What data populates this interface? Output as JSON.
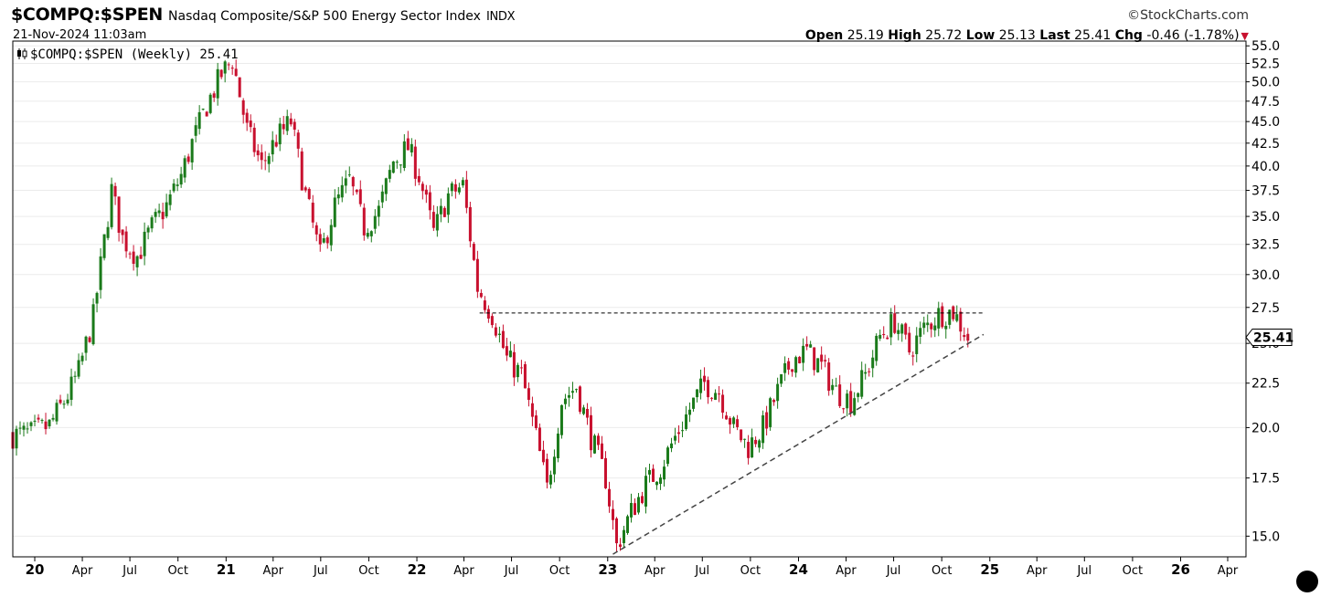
{
  "header": {
    "symbol": "$COMPQ:$SPEN",
    "description": "Nasdaq Composite/S&P 500 Energy Sector Index",
    "exchange": "INDX",
    "datetime": "21-Nov-2024 11:03am",
    "brand": "StockCharts.com",
    "quote": {
      "open_label": "Open",
      "open": "25.19",
      "high_label": "High",
      "high": "25.72",
      "low_label": "Low",
      "low": "25.13",
      "last_label": "Last",
      "last": "25.41",
      "chg_label": "Chg",
      "chg": "-0.46 (-1.78%)"
    }
  },
  "legend": {
    "text": "$COMPQ:$SPEN (Weekly) 25.41",
    "icon": "candlestick-icon"
  },
  "colors": {
    "up": "#1a7a1a",
    "down": "#c8102e",
    "trendline": "#444444",
    "grid": "#ebebeb",
    "axis": "#000000"
  },
  "chart_data": {
    "type": "candlestick",
    "title": "$COMPQ:$SPEN (Weekly) 25.41",
    "interval": "Weekly",
    "y_scale": "log",
    "ylim": [
      14.2,
      55.7
    ],
    "xlim": [
      "2019-11-20",
      "2026-05-06"
    ],
    "grid": "horizontal",
    "y_ticks": [
      "15.0",
      "17.5",
      "20.0",
      "22.5",
      "25.0",
      "27.5",
      "30.0",
      "32.5",
      "35.0",
      "37.5",
      "40.0",
      "42.5",
      "45.0",
      "47.5",
      "50.0",
      "52.5",
      "55.0"
    ],
    "y_tick_values": [
      15.0,
      17.5,
      20.0,
      22.5,
      25.0,
      27.5,
      30.0,
      32.5,
      35.0,
      37.5,
      40.0,
      42.5,
      45.0,
      47.5,
      50.0,
      52.5,
      55.0
    ],
    "x_ticks": [
      {
        "label": "20",
        "date": "2020-01-01",
        "major": true
      },
      {
        "label": "Apr",
        "date": "2020-04-01",
        "major": false
      },
      {
        "label": "Jul",
        "date": "2020-07-01",
        "major": false
      },
      {
        "label": "Oct",
        "date": "2020-10-01",
        "major": false
      },
      {
        "label": "21",
        "date": "2021-01-01",
        "major": true
      },
      {
        "label": "Apr",
        "date": "2021-04-01",
        "major": false
      },
      {
        "label": "Jul",
        "date": "2021-07-01",
        "major": false
      },
      {
        "label": "Oct",
        "date": "2021-10-01",
        "major": false
      },
      {
        "label": "22",
        "date": "2022-01-01",
        "major": true
      },
      {
        "label": "Apr",
        "date": "2022-04-01",
        "major": false
      },
      {
        "label": "Jul",
        "date": "2022-07-01",
        "major": false
      },
      {
        "label": "Oct",
        "date": "2022-10-01",
        "major": false
      },
      {
        "label": "23",
        "date": "2023-01-01",
        "major": true
      },
      {
        "label": "Apr",
        "date": "2023-04-01",
        "major": false
      },
      {
        "label": "Jul",
        "date": "2023-07-01",
        "major": false
      },
      {
        "label": "Oct",
        "date": "2023-10-01",
        "major": false
      },
      {
        "label": "24",
        "date": "2024-01-01",
        "major": true
      },
      {
        "label": "Apr",
        "date": "2024-04-01",
        "major": false
      },
      {
        "label": "Jul",
        "date": "2024-07-01",
        "major": false
      },
      {
        "label": "Oct",
        "date": "2024-10-01",
        "major": false
      },
      {
        "label": "25",
        "date": "2025-01-01",
        "major": true
      },
      {
        "label": "Apr",
        "date": "2025-04-01",
        "major": false
      },
      {
        "label": "Jul",
        "date": "2025-07-01",
        "major": false
      },
      {
        "label": "Oct",
        "date": "2025-10-01",
        "major": false
      },
      {
        "label": "26",
        "date": "2026-01-01",
        "major": true
      },
      {
        "label": "Apr",
        "date": "2026-04-01",
        "major": false
      }
    ],
    "last_value_label": "25.41",
    "last_value": 25.41,
    "close_path": [
      [
        "2019-11-20",
        19.6
      ],
      [
        "2019-12-25",
        19.7
      ],
      [
        "2020-01-29",
        20.1
      ],
      [
        "2020-03-04",
        21.8
      ],
      [
        "2020-03-25",
        23.2
      ],
      [
        "2020-04-22",
        26.8
      ],
      [
        "2020-05-27",
        37.5
      ],
      [
        "2020-06-17",
        33.0
      ],
      [
        "2020-07-15",
        31.5
      ],
      [
        "2020-08-12",
        34.0
      ],
      [
        "2020-09-09",
        36.0
      ],
      [
        "2020-10-07",
        39.0
      ],
      [
        "2020-10-28",
        42.5
      ],
      [
        "2020-11-25",
        47.0
      ],
      [
        "2020-12-23",
        51.0
      ],
      [
        "2021-01-13",
        53.0
      ],
      [
        "2021-02-10",
        44.0
      ],
      [
        "2021-03-10",
        40.0
      ],
      [
        "2021-04-07",
        43.0
      ],
      [
        "2021-05-05",
        45.0
      ],
      [
        "2021-06-02",
        37.0
      ],
      [
        "2021-06-30",
        31.5
      ],
      [
        "2021-07-28",
        36.0
      ],
      [
        "2021-08-25",
        38.5
      ],
      [
        "2021-09-22",
        34.0
      ],
      [
        "2021-10-20",
        35.5
      ],
      [
        "2021-11-17",
        40.5
      ],
      [
        "2021-12-15",
        42.0
      ],
      [
        "2022-01-05",
        39.0
      ],
      [
        "2022-02-02",
        33.5
      ],
      [
        "2022-03-02",
        37.0
      ],
      [
        "2022-03-30",
        38.0
      ],
      [
        "2022-04-27",
        29.0
      ],
      [
        "2022-05-25",
        27.0
      ],
      [
        "2022-06-22",
        24.0
      ],
      [
        "2022-07-20",
        23.0
      ],
      [
        "2022-08-17",
        19.5
      ],
      [
        "2022-09-07",
        17.0
      ],
      [
        "2022-10-05",
        21.5
      ],
      [
        "2022-11-02",
        22.3
      ],
      [
        "2022-11-30",
        19.5
      ],
      [
        "2022-12-28",
        17.5
      ],
      [
        "2023-01-18",
        14.6
      ],
      [
        "2023-02-15",
        16.0
      ],
      [
        "2023-03-15",
        17.2
      ],
      [
        "2023-04-12",
        18.0
      ],
      [
        "2023-05-10",
        19.5
      ],
      [
        "2023-06-07",
        21.0
      ],
      [
        "2023-07-05",
        22.5
      ],
      [
        "2023-08-02",
        22.0
      ],
      [
        "2023-08-30",
        20.0
      ],
      [
        "2023-09-27",
        19.0
      ],
      [
        "2023-10-25",
        20.0
      ],
      [
        "2023-11-22",
        22.0
      ],
      [
        "2023-12-20",
        24.0
      ],
      [
        "2024-01-17",
        24.5
      ],
      [
        "2024-02-14",
        23.5
      ],
      [
        "2024-03-13",
        22.0
      ],
      [
        "2024-04-10",
        21.5
      ],
      [
        "2024-05-08",
        23.0
      ],
      [
        "2024-06-05",
        25.5
      ],
      [
        "2024-07-03",
        26.5
      ],
      [
        "2024-07-31",
        24.5
      ],
      [
        "2024-08-28",
        26.0
      ],
      [
        "2024-09-25",
        27.0
      ],
      [
        "2024-10-23",
        27.2
      ],
      [
        "2024-11-20",
        25.41
      ]
    ],
    "annotations": [
      {
        "type": "horizontal_line",
        "style": "dashed",
        "value": 27.1,
        "from": "2022-05-01",
        "to": "2024-12-20"
      },
      {
        "type": "trendline",
        "style": "dashed",
        "from": [
          "2023-01-11",
          14.3
        ],
        "to": [
          "2024-12-20",
          25.6
        ]
      }
    ]
  }
}
